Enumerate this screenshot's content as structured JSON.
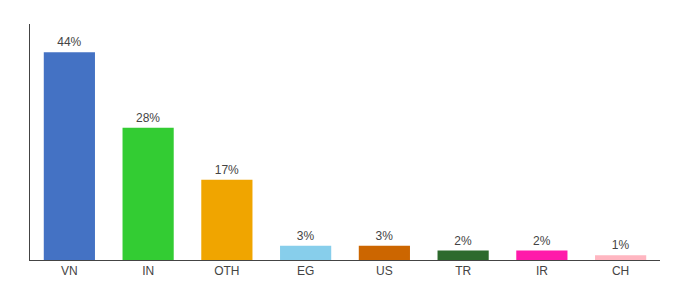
{
  "chart_data": {
    "type": "bar",
    "categories": [
      "VN",
      "IN",
      "OTH",
      "EG",
      "US",
      "TR",
      "IR",
      "CH"
    ],
    "values": [
      44,
      28,
      17,
      3,
      3,
      2,
      2,
      1
    ],
    "value_labels": [
      "44%",
      "28%",
      "17%",
      "3%",
      "3%",
      "2%",
      "2%",
      "1%"
    ],
    "colors": [
      "#4472c4",
      "#33cc33",
      "#f0a500",
      "#87ceeb",
      "#cc6600",
      "#2d6a2d",
      "#ff1aaa",
      "#ffb6c1"
    ],
    "ylim": [
      0,
      50
    ],
    "yticks": [],
    "grid": false,
    "data_labels": true,
    "tick_labels": "x"
  }
}
